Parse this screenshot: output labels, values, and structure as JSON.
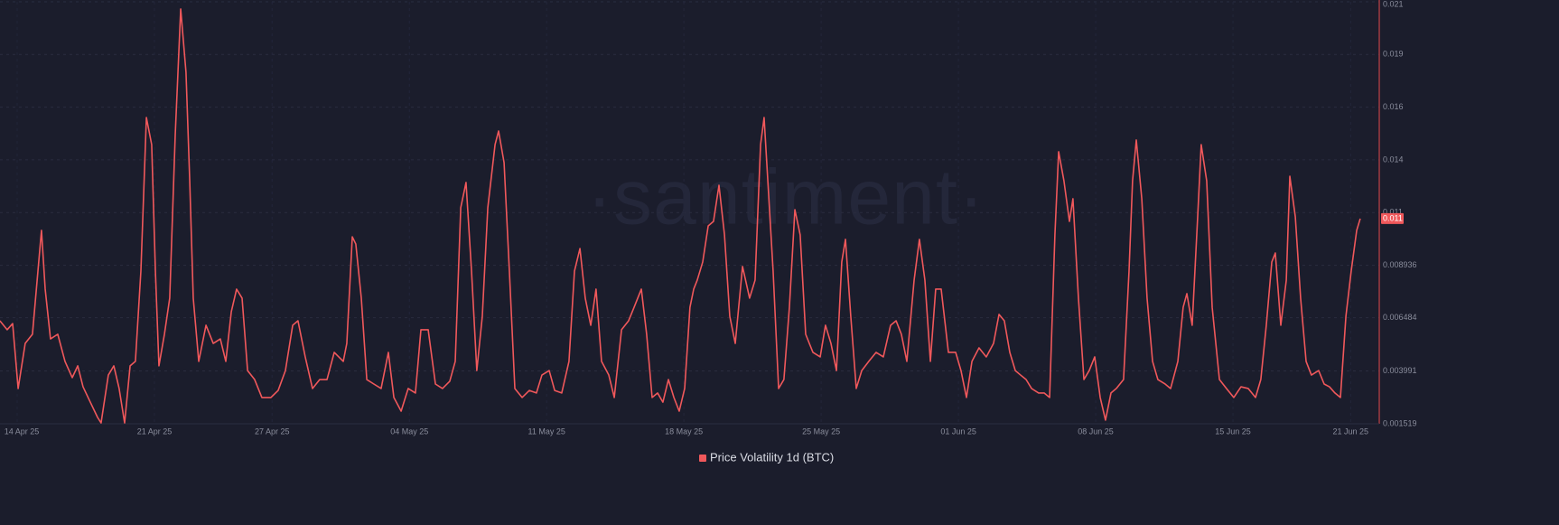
{
  "chart_data": {
    "type": "line",
    "watermark": "·santiment·",
    "x": [
      -0.88,
      -0.51,
      -0.23,
      0.05,
      0.41,
      0.78,
      1.06,
      1.24,
      1.43,
      1.7,
      2.07,
      2.44,
      2.81,
      3.09,
      3.36,
      3.73,
      4.1,
      4.28,
      4.65,
      4.93,
      5.2,
      5.48,
      5.76,
      6.03,
      6.31,
      6.59,
      6.86,
      7.05,
      7.23,
      7.51,
      7.78,
      8.06,
      8.34,
      8.61,
      8.8,
      8.98,
      9.26,
      9.63,
      10.0,
      10.36,
      10.64,
      10.92,
      11.19,
      11.47,
      11.75,
      12.11,
      12.48,
      12.94,
      13.31,
      13.68,
      14.05,
      14.32,
      14.69,
      15.06,
      15.43,
      15.8,
      16.17,
      16.63,
      16.81,
      17.09,
      17.27,
      17.55,
      17.83,
      18.19,
      18.56,
      18.93,
      19.21,
      19.58,
      19.94,
      20.31,
      20.59,
      20.96,
      21.33,
      21.69,
      22.06,
      22.34,
      22.62,
      22.89,
      23.17,
      23.44,
      23.72,
      24.0,
      24.37,
      24.55,
      24.83,
      25.1,
      25.38,
      25.75,
      26.12,
      26.48,
      26.76,
      27.13,
      27.41,
      27.77,
      28.14,
      28.42,
      28.7,
      28.97,
      29.25,
      29.52,
      29.8,
      30.17,
      30.45,
      30.82,
      31.18,
      31.46,
      31.83,
      32.1,
      32.38,
      32.66,
      32.93,
      33.21,
      33.49,
      33.76,
      34.04,
      34.31,
      34.5,
      34.68,
      34.96,
      35.24,
      35.51,
      35.79,
      36.07,
      36.34,
      36.62,
      36.99,
      37.35,
      37.63,
      37.91,
      38.09,
      38.28,
      38.55,
      38.83,
      39.1,
      39.38,
      39.66,
      39.93,
      40.21,
      40.58,
      40.95,
      41.22,
      41.5,
      41.78,
      42.05,
      42.24,
      42.51,
      42.79,
      43.07,
      43.43,
      43.8,
      44.17,
      44.54,
      44.82,
      45.09,
      45.37,
      45.74,
      46.01,
      46.29,
      46.57,
      46.84,
      47.12,
      47.49,
      47.86,
      48.13,
      48.41,
      48.69,
      49.05,
      49.42,
      49.79,
      50.07,
      50.34,
      50.62,
      50.9,
      51.17,
      51.45,
      51.73,
      52.09,
      52.37,
      52.65,
      52.92,
      53.11,
      53.38,
      53.66,
      53.84,
      54.12,
      54.4,
      54.67,
      54.95,
      55.23,
      55.5,
      55.78,
      56.05,
      56.42,
      56.7,
      56.88,
      57.07,
      57.35,
      57.62,
      57.9,
      58.17,
      58.54,
      58.82,
      59.19,
      59.46,
      59.65,
      59.92,
      60.2,
      60.38,
      60.66,
      60.94,
      61.31,
      61.67,
      62.04,
      62.41,
      62.78,
      63.15,
      63.42,
      63.7,
      63.98,
      64.16,
      64.44,
      64.72,
      64.9,
      65.18,
      65.45,
      65.73,
      66.0,
      66.37,
      66.65,
      66.92,
      67.2,
      67.48,
      67.76,
      68.03,
      68.31,
      68.49
    ],
    "series": [
      {
        "name": "Price Volatility 1d (BTC)",
        "color": "#f0585b",
        "values": [
          0.00634,
          0.00592,
          0.00621,
          0.00317,
          0.00528,
          0.00571,
          0.00867,
          0.01057,
          0.00782,
          0.00549,
          0.00571,
          0.00444,
          0.00368,
          0.00423,
          0.00325,
          0.00253,
          0.00182,
          0.00156,
          0.0038,
          0.00423,
          0.00317,
          0.00156,
          0.00423,
          0.00444,
          0.00867,
          0.01585,
          0.01458,
          0.00867,
          0.00423,
          0.00571,
          0.0074,
          0.01501,
          0.02093,
          0.01797,
          0.01289,
          0.0074,
          0.00444,
          0.00613,
          0.00528,
          0.00549,
          0.00444,
          0.00676,
          0.00782,
          0.0074,
          0.00401,
          0.00359,
          0.00275,
          0.00275,
          0.00308,
          0.00401,
          0.00613,
          0.00634,
          0.00465,
          0.00317,
          0.00359,
          0.00359,
          0.00486,
          0.00444,
          0.00528,
          0.01027,
          0.00993,
          0.0074,
          0.00359,
          0.00338,
          0.00317,
          0.00486,
          0.00275,
          0.00211,
          0.00317,
          0.00296,
          0.00592,
          0.00592,
          0.00338,
          0.00317,
          0.00351,
          0.00444,
          0.01163,
          0.01281,
          0.00867,
          0.00401,
          0.00655,
          0.01163,
          0.01458,
          0.01522,
          0.01374,
          0.00867,
          0.00317,
          0.00275,
          0.00308,
          0.00296,
          0.0038,
          0.00401,
          0.00308,
          0.00296,
          0.00444,
          0.00867,
          0.00972,
          0.0074,
          0.00613,
          0.00782,
          0.00444,
          0.0038,
          0.00275,
          0.00592,
          0.00634,
          0.00697,
          0.00782,
          0.00571,
          0.00275,
          0.00296,
          0.00253,
          0.00359,
          0.00275,
          0.00211,
          0.00317,
          0.00697,
          0.00782,
          0.00824,
          0.00909,
          0.01078,
          0.01099,
          0.01268,
          0.01036,
          0.00655,
          0.00528,
          0.00888,
          0.0074,
          0.00824,
          0.01458,
          0.01585,
          0.01289,
          0.00867,
          0.00317,
          0.00359,
          0.00697,
          0.01154,
          0.01036,
          0.00571,
          0.00486,
          0.00465,
          0.00613,
          0.00528,
          0.00401,
          0.00909,
          0.01015,
          0.00655,
          0.00317,
          0.00401,
          0.00444,
          0.00486,
          0.00465,
          0.00613,
          0.00634,
          0.00571,
          0.00444,
          0.00824,
          0.01015,
          0.00824,
          0.00444,
          0.00782,
          0.00782,
          0.00486,
          0.00486,
          0.00401,
          0.00275,
          0.00444,
          0.00507,
          0.00465,
          0.00528,
          0.00664,
          0.00634,
          0.00486,
          0.00401,
          0.0038,
          0.00359,
          0.00317,
          0.00296,
          0.00296,
          0.00275,
          0.01036,
          0.01425,
          0.01289,
          0.01099,
          0.01205,
          0.0074,
          0.00359,
          0.00401,
          0.00465,
          0.00275,
          0.00169,
          0.00296,
          0.00317,
          0.00359,
          0.00867,
          0.01289,
          0.0148,
          0.01205,
          0.0074,
          0.00444,
          0.00359,
          0.00338,
          0.00317,
          0.00444,
          0.00697,
          0.00761,
          0.00613,
          0.0112,
          0.01458,
          0.01289,
          0.00697,
          0.00359,
          0.00317,
          0.00275,
          0.00325,
          0.00317,
          0.00275,
          0.00359,
          0.00613,
          0.00909,
          0.00951,
          0.00613,
          0.00824,
          0.0131,
          0.0112,
          0.0074,
          0.00444,
          0.0038,
          0.00401,
          0.00338,
          0.00325,
          0.00296,
          0.00275,
          0.00655,
          0.00867,
          0.01057,
          0.01112
        ]
      }
    ],
    "last_value_label": "0.011",
    "xlim": [
      -0.875,
      69.46
    ],
    "xticks": [
      {
        "value": 0,
        "label": "14 Apr 25"
      },
      {
        "value": 7,
        "label": "21 Apr 25"
      },
      {
        "value": 13,
        "label": "27 Apr 25"
      },
      {
        "value": 20,
        "label": "04 May 25"
      },
      {
        "value": 27,
        "label": "11 May 25"
      },
      {
        "value": 34,
        "label": "18 May 25"
      },
      {
        "value": 41,
        "label": "25 May 25"
      },
      {
        "value": 48,
        "label": "01 Jun 25"
      },
      {
        "value": 55,
        "label": "08 Jun 25"
      },
      {
        "value": 62,
        "label": "15 Jun 25"
      },
      {
        "value": 68,
        "label": "21 Jun 25"
      }
    ],
    "ylim": [
      0.001519,
      0.021265
    ],
    "yticks": [
      0.001519,
      0.003991,
      0.006484,
      0.008936,
      {
        "value": 0.011405,
        "label": "0.011"
      },
      {
        "value": 0.01387,
        "label": "0.014"
      },
      {
        "value": 0.016335,
        "label": "0.016"
      },
      {
        "value": 0.0188,
        "label": "0.019"
      },
      {
        "value": 0.021265,
        "label": "0.021"
      }
    ],
    "grid": true,
    "legend": "bottom"
  }
}
